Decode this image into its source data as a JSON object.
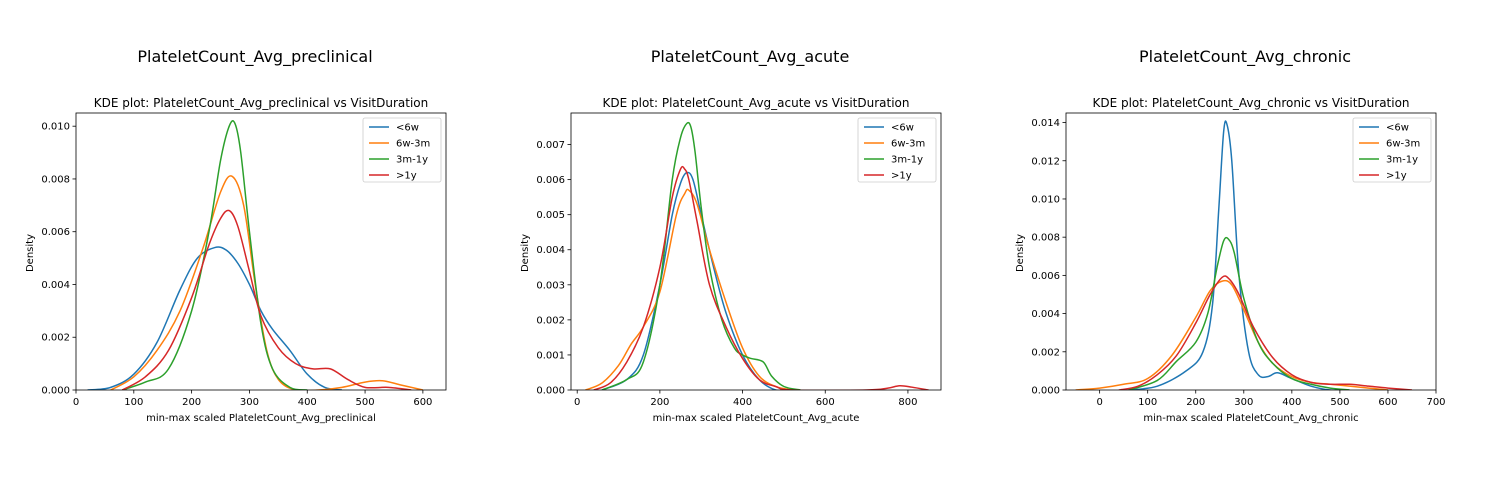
{
  "panel_titles": [
    "PlateletCount_Avg_preclinical",
    "PlateletCount_Avg_acute",
    "PlateletCount_Avg_chronic"
  ],
  "series_colors": {
    "<6w": "#1f77b4",
    "6w-3m": "#ff7f0e",
    "3m-1y": "#2ca02c",
    ">1y": "#d62728"
  },
  "chart_data": [
    {
      "type": "line",
      "title": "KDE plot:  PlateletCount_Avg_preclinical vs VisitDuration",
      "xlabel": "min-max scaled PlateletCount_Avg_preclinical",
      "ylabel": "Density",
      "xlim": [
        0,
        640
      ],
      "ylim": [
        0,
        0.0105
      ],
      "xticks": [
        0,
        100,
        200,
        300,
        400,
        500,
        600
      ],
      "yticks": [
        0.0,
        0.002,
        0.004,
        0.006,
        0.008,
        0.01
      ],
      "ytick_labels": [
        "0.000",
        "0.002",
        "0.004",
        "0.006",
        "0.008",
        "0.010"
      ],
      "legend": "top-right",
      "series": [
        {
          "name": "<6w",
          "x": [
            20,
            60,
            100,
            140,
            180,
            210,
            240,
            260,
            280,
            300,
            320,
            340,
            370,
            400,
            430,
            460
          ],
          "y": [
            0,
            0.0001,
            0.0006,
            0.0018,
            0.0038,
            0.005,
            0.0054,
            0.0053,
            0.0048,
            0.004,
            0.003,
            0.0023,
            0.0015,
            0.0006,
            0.0001,
            0
          ]
        },
        {
          "name": "6w-3m",
          "x": [
            60,
            100,
            140,
            180,
            220,
            250,
            270,
            290,
            310,
            330,
            350,
            380,
            420,
            460,
            500,
            530,
            560,
            600
          ],
          "y": [
            0,
            0.0005,
            0.0015,
            0.003,
            0.0054,
            0.0075,
            0.0081,
            0.007,
            0.004,
            0.0015,
            0.0004,
            0,
            0,
            0.0001,
            0.0003,
            0.00035,
            0.0002,
            0
          ]
        },
        {
          "name": "3m-1y",
          "x": [
            80,
            120,
            160,
            200,
            230,
            250,
            265,
            275,
            285,
            300,
            320,
            340,
            370,
            400
          ],
          "y": [
            0,
            0.0003,
            0.0008,
            0.003,
            0.006,
            0.0087,
            0.01,
            0.0101,
            0.009,
            0.006,
            0.0025,
            0.0008,
            0.0001,
            0
          ]
        },
        {
          "name": ">1y",
          "x": [
            80,
            120,
            160,
            200,
            230,
            250,
            265,
            280,
            300,
            320,
            350,
            380,
            410,
            440,
            470,
            500,
            540,
            580
          ],
          "y": [
            0,
            0.0005,
            0.0015,
            0.0035,
            0.0055,
            0.0065,
            0.0068,
            0.0062,
            0.0045,
            0.0028,
            0.0016,
            0.001,
            0.0008,
            0.0008,
            0.0004,
            0.0001,
            0.0001,
            0
          ]
        }
      ]
    },
    {
      "type": "line",
      "title": "KDE plot:  PlateletCount_Avg_acute vs VisitDuration",
      "xlabel": "min-max scaled PlateletCount_Avg_acute",
      "ylabel": "Density",
      "xlim": [
        -15,
        880
      ],
      "ylim": [
        0,
        0.0079
      ],
      "xticks": [
        0,
        200,
        400,
        600,
        800
      ],
      "yticks": [
        0.0,
        0.001,
        0.002,
        0.003,
        0.004,
        0.005,
        0.006,
        0.007
      ],
      "ytick_labels": [
        "0.000",
        "0.001",
        "0.002",
        "0.003",
        "0.004",
        "0.005",
        "0.006",
        "0.007"
      ],
      "legend": "top-right",
      "series": [
        {
          "name": "<6w",
          "x": [
            60,
            120,
            160,
            200,
            230,
            250,
            265,
            280,
            300,
            330,
            360,
            400,
            440,
            480,
            520
          ],
          "y": [
            0,
            0.0003,
            0.001,
            0.003,
            0.005,
            0.0059,
            0.0062,
            0.006,
            0.005,
            0.0035,
            0.0022,
            0.001,
            0.0003,
            0,
            0
          ]
        },
        {
          "name": "6w-3m",
          "x": [
            20,
            60,
            100,
            130,
            160,
            200,
            240,
            260,
            270,
            290,
            320,
            360,
            400,
            440,
            480,
            520
          ],
          "y": [
            0,
            0.0002,
            0.0007,
            0.0013,
            0.0018,
            0.0028,
            0.005,
            0.0056,
            0.0057,
            0.0053,
            0.004,
            0.0025,
            0.0012,
            0.0004,
            0.0001,
            0
          ]
        },
        {
          "name": "3m-1y",
          "x": [
            60,
            120,
            160,
            200,
            230,
            250,
            265,
            275,
            285,
            300,
            320,
            350,
            380,
            400,
            420,
            450,
            470,
            500,
            540
          ],
          "y": [
            0,
            0.0003,
            0.0008,
            0.003,
            0.006,
            0.0072,
            0.0076,
            0.0075,
            0.0068,
            0.0052,
            0.0035,
            0.002,
            0.0012,
            0.001,
            0.0009,
            0.0008,
            0.0004,
            0.0001,
            0
          ]
        },
        {
          "name": ">1y",
          "x": [
            40,
            80,
            120,
            160,
            200,
            230,
            250,
            260,
            270,
            290,
            320,
            360,
            400,
            440,
            480,
            520,
            700,
            750,
            780,
            810,
            850
          ],
          "y": [
            0,
            0.0002,
            0.0008,
            0.0018,
            0.0035,
            0.0055,
            0.0063,
            0.0063,
            0.006,
            0.0048,
            0.003,
            0.0018,
            0.0009,
            0.0003,
            0.0001,
            0,
            0,
            5e-05,
            0.00012,
            8e-05,
            0
          ]
        }
      ]
    },
    {
      "type": "line",
      "title": "KDE plot:  PlateletCount_Avg_chronic vs VisitDuration",
      "xlabel": "min-max scaled PlateletCount_Avg_chronic",
      "ylabel": "Density",
      "xlim": [
        -70,
        700
      ],
      "ylim": [
        0,
        0.0145
      ],
      "xticks": [
        0,
        100,
        200,
        300,
        400,
        500,
        600,
        700
      ],
      "yticks": [
        0.0,
        0.002,
        0.004,
        0.006,
        0.008,
        0.01,
        0.012,
        0.014
      ],
      "ytick_labels": [
        "0.000",
        "0.002",
        "0.004",
        "0.006",
        "0.008",
        "0.010",
        "0.012",
        "0.014"
      ],
      "legend": "top-right",
      "series": [
        {
          "name": "<6w",
          "x": [
            60,
            120,
            180,
            215,
            235,
            248,
            258,
            265,
            275,
            290,
            310,
            330,
            350,
            370,
            400,
            440,
            480,
            520
          ],
          "y": [
            0,
            0.0002,
            0.001,
            0.002,
            0.0045,
            0.0095,
            0.0135,
            0.0139,
            0.012,
            0.006,
            0.002,
            0.0008,
            0.0007,
            0.0009,
            0.0006,
            0.0002,
            0,
            0
          ]
        },
        {
          "name": "6w-3m",
          "x": [
            -50,
            0,
            50,
            100,
            150,
            200,
            230,
            255,
            275,
            300,
            330,
            360,
            400,
            440,
            480,
            520,
            560,
            600
          ],
          "y": [
            0,
            0.0001,
            0.0003,
            0.0006,
            0.0018,
            0.0038,
            0.0052,
            0.0057,
            0.0055,
            0.0042,
            0.0025,
            0.0014,
            0.0007,
            0.0004,
            0.0003,
            0.0002,
            0.0001,
            0
          ]
        },
        {
          "name": "3m-1y",
          "x": [
            60,
            120,
            160,
            200,
            225,
            245,
            258,
            268,
            280,
            300,
            330,
            360,
            400,
            440,
            480,
            520
          ],
          "y": [
            0,
            0.0005,
            0.0015,
            0.0025,
            0.004,
            0.0065,
            0.0078,
            0.0079,
            0.0072,
            0.0048,
            0.0025,
            0.0014,
            0.0006,
            0.0003,
            0.0001,
            0
          ]
        },
        {
          "name": ">1y",
          "x": [
            40,
            80,
            120,
            160,
            200,
            230,
            255,
            270,
            290,
            320,
            360,
            400,
            440,
            480,
            520,
            560,
            600,
            650
          ],
          "y": [
            0,
            0.0002,
            0.0008,
            0.0018,
            0.0035,
            0.005,
            0.0059,
            0.0058,
            0.005,
            0.0033,
            0.0017,
            0.0008,
            0.0004,
            0.0003,
            0.0003,
            0.0002,
            0.0001,
            0
          ]
        }
      ]
    }
  ]
}
